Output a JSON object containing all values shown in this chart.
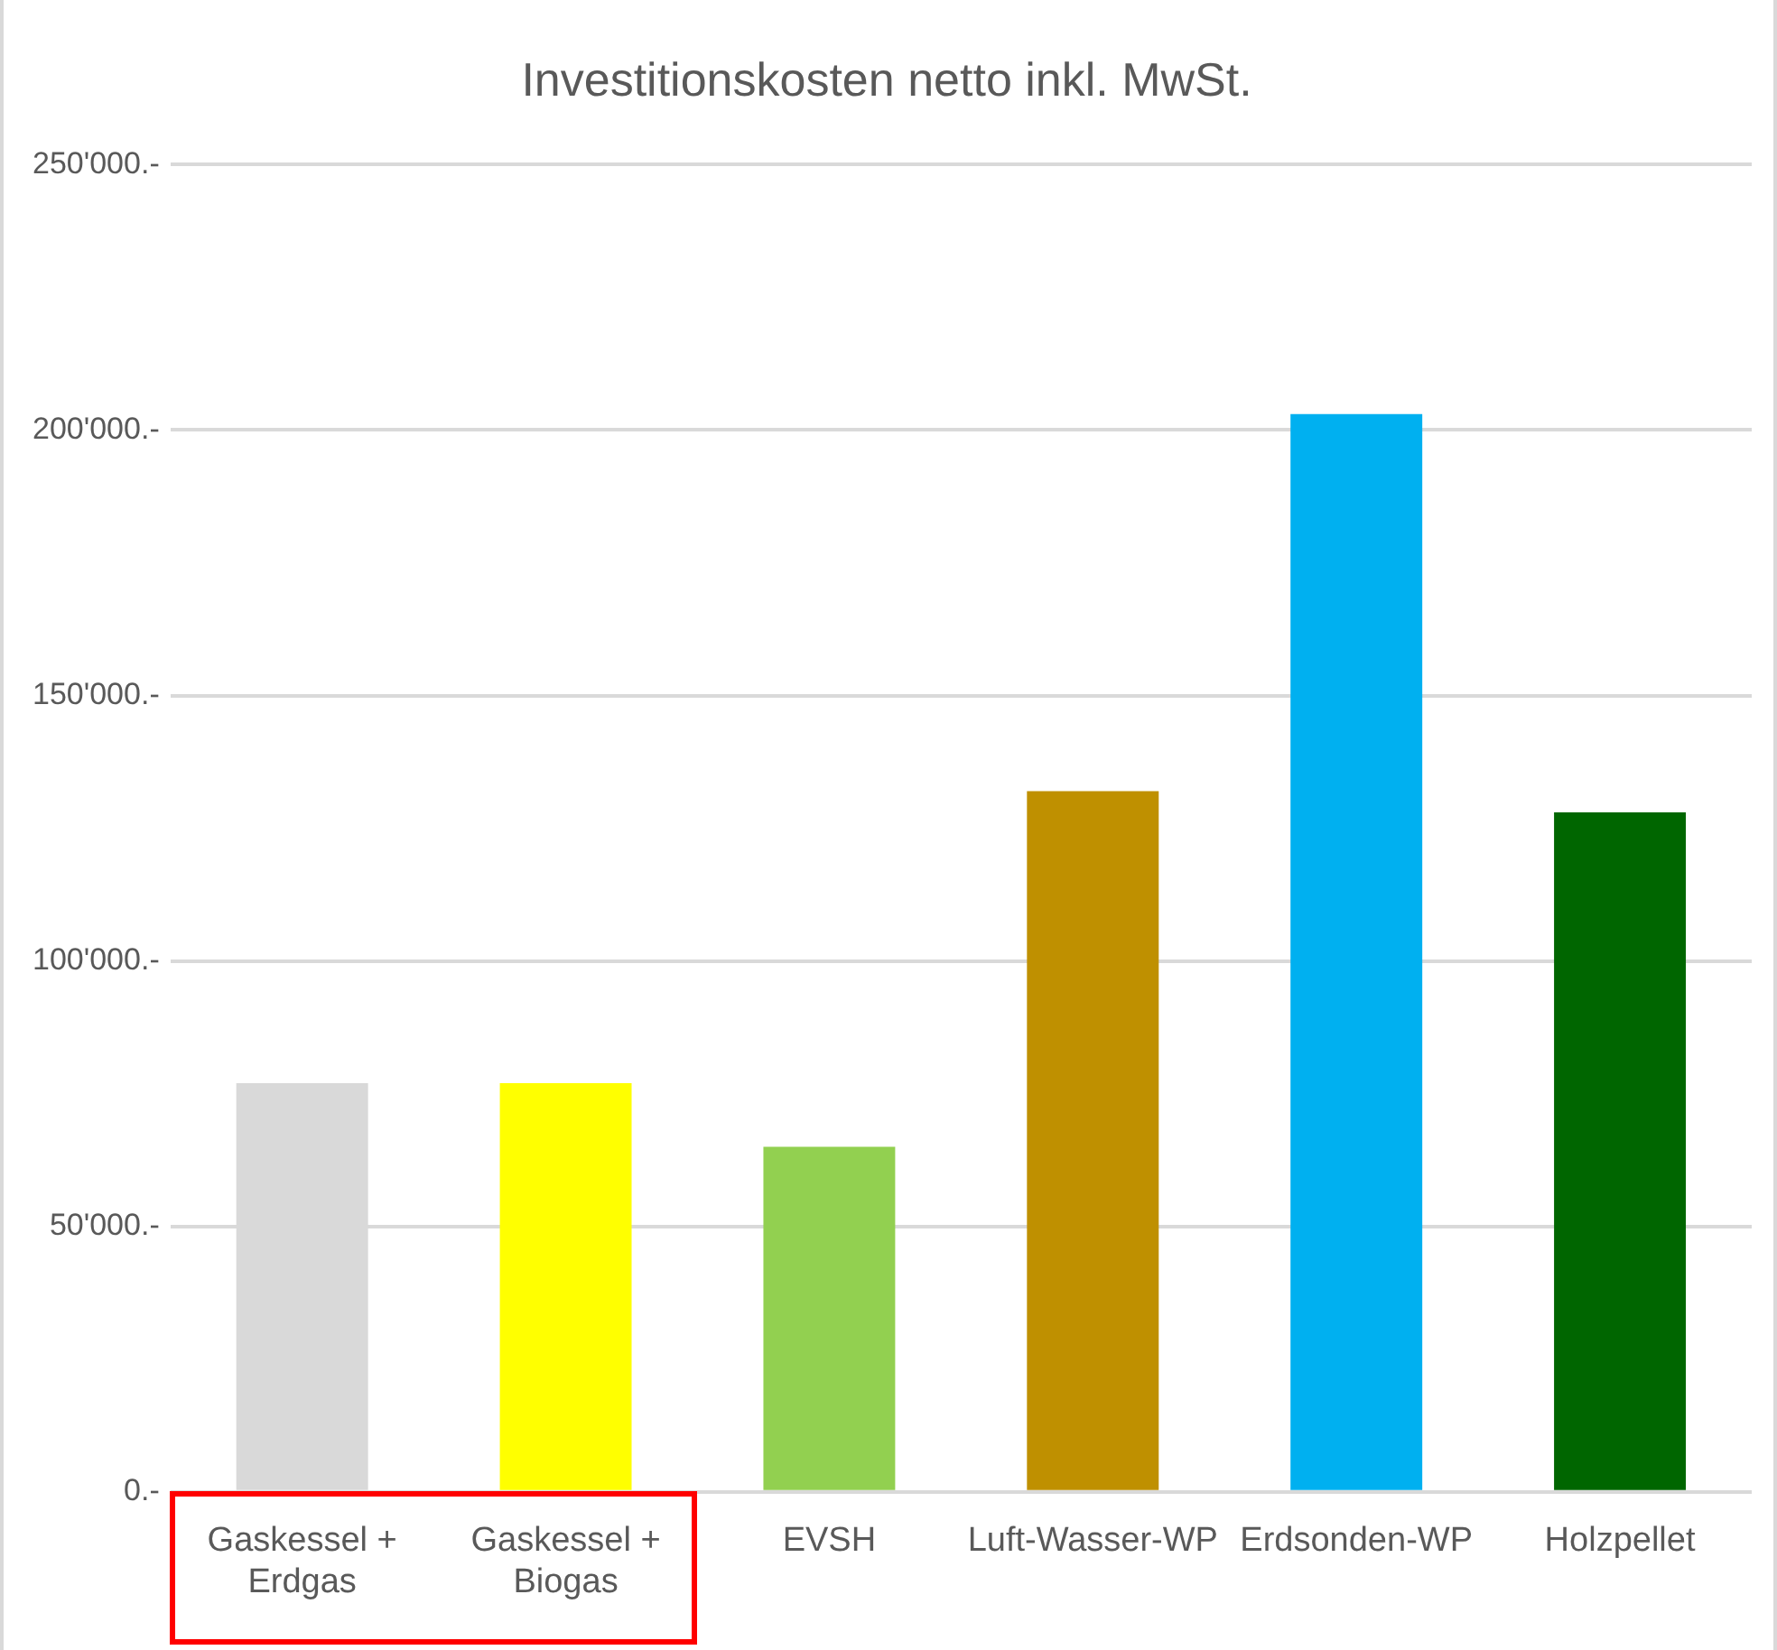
{
  "chart_data": {
    "type": "bar",
    "title": "Investitionskosten netto inkl. MwSt.",
    "categories": [
      "Gaskessel + Erdgas",
      "Gaskessel + Biogas",
      "EVSH",
      "Luft-Wasser-WP",
      "Erdsonden-WP",
      "Holzpellet"
    ],
    "values": [
      77000,
      77000,
      65000,
      132000,
      203000,
      128000
    ],
    "colors": [
      "#d9d9d9",
      "#ffff00",
      "#92d050",
      "#bf9000",
      "#00b0f0",
      "#006600"
    ],
    "ylim": [
      0,
      250000
    ],
    "yticks": [
      {
        "value": 0,
        "label": "0.-"
      },
      {
        "value": 50000,
        "label": "50'000.-"
      },
      {
        "value": 100000,
        "label": "100'000.-"
      },
      {
        "value": 150000,
        "label": "150'000.-"
      },
      {
        "value": 200000,
        "label": "200'000.-"
      },
      {
        "value": 250000,
        "label": "250'000.-"
      }
    ],
    "grid": "y",
    "legend": false
  }
}
